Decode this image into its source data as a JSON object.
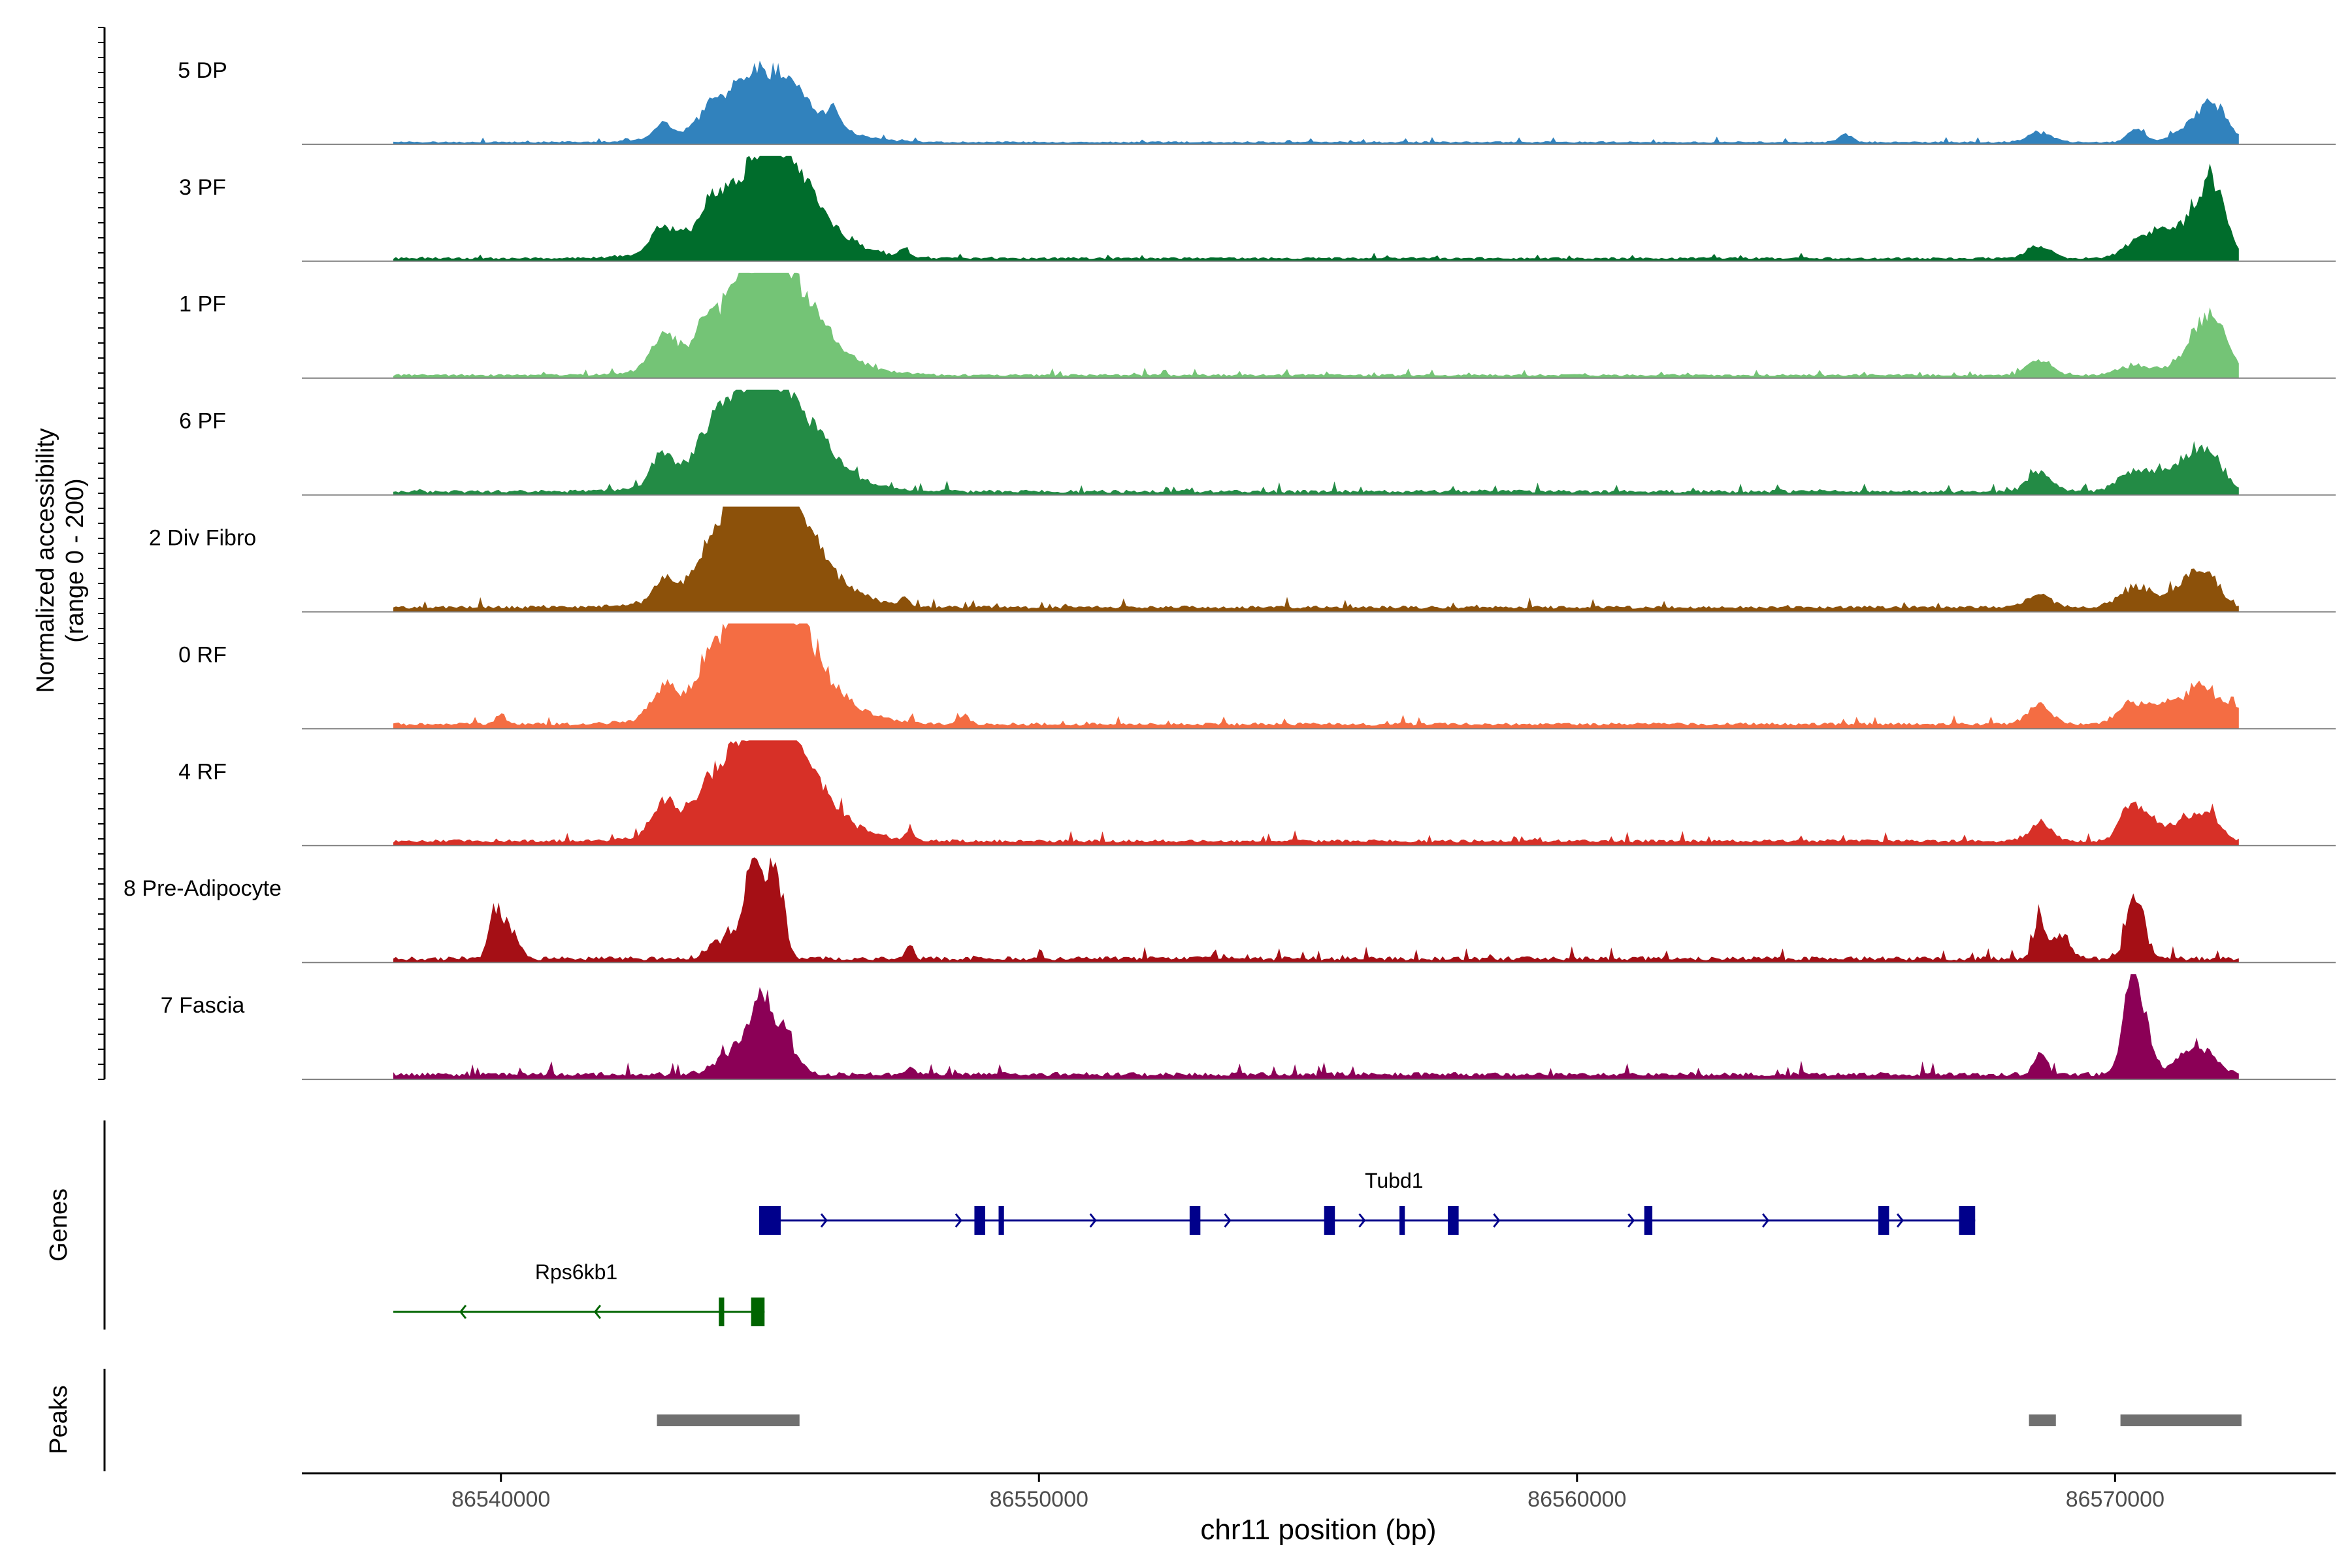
{
  "chart_data": {
    "type": "area",
    "title": "",
    "xlabel": "chr11 position (bp)",
    "ylabel": "Normalized accessibility",
    "ylabel_sub": "(range 0 - 200)",
    "y_range": [
      0,
      200
    ],
    "xlim": [
      86536300,
      86574100
    ],
    "x_ticks": [
      86540000,
      86550000,
      86560000,
      86570000
    ],
    "x_tick_labels": [
      "86540000",
      "86550000",
      "86560000",
      "86570000"
    ],
    "panel_labels": {
      "genes": "Genes",
      "peaks": "Peaks"
    },
    "tracks_xlim": [
      86538000,
      86572300
    ],
    "tracks": [
      {
        "name": "5 DP",
        "color": "#3182bd",
        "bg": 1.5,
        "noise": 1.5,
        "peaks": [
          [
            86543000,
            160,
            12
          ],
          [
            86543900,
            180,
            15
          ],
          [
            86544500,
            300,
            18
          ],
          [
            86544880,
            1000,
            30
          ],
          [
            86544950,
            650,
            14
          ],
          [
            86545200,
            500,
            22
          ],
          [
            86546200,
            100,
            15
          ],
          [
            86565000,
            120,
            8
          ],
          [
            86568600,
            220,
            10
          ],
          [
            86570400,
            160,
            12
          ],
          [
            86571650,
            350,
            28
          ],
          [
            86571900,
            200,
            14
          ]
        ]
      },
      {
        "name": "3 PF",
        "color": "#006d2c",
        "bg": 2,
        "noise": 2,
        "peaks": [
          [
            86543000,
            200,
            22
          ],
          [
            86543900,
            200,
            16
          ],
          [
            86544880,
            1000,
            60
          ],
          [
            86544950,
            650,
            25
          ],
          [
            86545200,
            500,
            26
          ],
          [
            86547500,
            80,
            8
          ],
          [
            86568600,
            220,
            12
          ],
          [
            86570500,
            300,
            20
          ],
          [
            86570900,
            200,
            14
          ],
          [
            86571600,
            350,
            50
          ],
          [
            86571850,
            200,
            35
          ]
        ]
      },
      {
        "name": "1 PF",
        "color": "#74c476",
        "bg": 2,
        "noise": 2,
        "peaks": [
          [
            86543000,
            220,
            28
          ],
          [
            86543800,
            150,
            16
          ],
          [
            86544400,
            220,
            20
          ],
          [
            86544880,
            1000,
            62
          ],
          [
            86544950,
            650,
            28
          ],
          [
            86545200,
            500,
            30
          ],
          [
            86568600,
            220,
            15
          ],
          [
            86570400,
            300,
            10
          ],
          [
            86571650,
            350,
            45
          ],
          [
            86571900,
            200,
            20
          ]
        ]
      },
      {
        "name": "6 PF",
        "color": "#238b45",
        "bg": 2,
        "noise": 3,
        "peaks": [
          [
            86543000,
            200,
            28
          ],
          [
            86543800,
            200,
            16
          ],
          [
            86544300,
            300,
            25
          ],
          [
            86544880,
            1000,
            58
          ],
          [
            86544950,
            650,
            28
          ],
          [
            86545200,
            500,
            25
          ],
          [
            86546000,
            200,
            8
          ],
          [
            86568600,
            220,
            18
          ],
          [
            86570300,
            250,
            18
          ],
          [
            86570800,
            250,
            15
          ],
          [
            86571500,
            300,
            40
          ],
          [
            86571900,
            200,
            15
          ]
        ]
      },
      {
        "name": "2 Div Fibro",
        "color": "#8c510a",
        "bg": 3,
        "noise": 3,
        "peaks": [
          [
            86543000,
            160,
            15
          ],
          [
            86543900,
            200,
            16
          ],
          [
            86544400,
            250,
            28
          ],
          [
            86544880,
            1000,
            65
          ],
          [
            86544950,
            650,
            30
          ],
          [
            86545200,
            500,
            28
          ],
          [
            86547500,
            80,
            8
          ],
          [
            86568600,
            220,
            12
          ],
          [
            86570400,
            300,
            20
          ],
          [
            86571400,
            300,
            28
          ],
          [
            86571800,
            200,
            18
          ]
        ]
      },
      {
        "name": "0 RF",
        "color": "#f46d43",
        "bg": 3,
        "noise": 3,
        "peaks": [
          [
            86540000,
            80,
            12
          ],
          [
            86543000,
            200,
            25
          ],
          [
            86543900,
            200,
            14
          ],
          [
            86544400,
            250,
            20
          ],
          [
            86544880,
            1000,
            72
          ],
          [
            86544950,
            650,
            35
          ],
          [
            86545200,
            500,
            30
          ],
          [
            86548600,
            100,
            8
          ],
          [
            86568600,
            220,
            18
          ],
          [
            86570300,
            250,
            20
          ],
          [
            86570900,
            250,
            18
          ],
          [
            86571600,
            300,
            38
          ],
          [
            86572200,
            120,
            18
          ]
        ]
      },
      {
        "name": "4 RF",
        "color": "#d73027",
        "bg": 3,
        "noise": 3,
        "peaks": [
          [
            86543000,
            200,
            28
          ],
          [
            86543800,
            200,
            14
          ],
          [
            86544400,
            250,
            15
          ],
          [
            86544880,
            1000,
            62
          ],
          [
            86544950,
            650,
            30
          ],
          [
            86545200,
            500,
            38
          ],
          [
            86547600,
            80,
            8
          ],
          [
            86568600,
            200,
            18
          ],
          [
            86570300,
            200,
            35
          ],
          [
            86570700,
            200,
            16
          ],
          [
            86571400,
            300,
            24
          ],
          [
            86571800,
            200,
            15
          ]
        ]
      },
      {
        "name": "8 Pre-Adipocyte",
        "color": "#a50f15",
        "bg": 2,
        "noise": 4,
        "peaks": [
          [
            86539900,
            120,
            45
          ],
          [
            86540200,
            150,
            25
          ],
          [
            86544300,
            300,
            25
          ],
          [
            86544700,
            150,
            88
          ],
          [
            86545100,
            150,
            90
          ],
          [
            86547600,
            80,
            12
          ],
          [
            86568600,
            100,
            40
          ],
          [
            86569000,
            150,
            25
          ],
          [
            86570300,
            120,
            45
          ],
          [
            86570500,
            150,
            25
          ]
        ]
      },
      {
        "name": "7 Fascia",
        "color": "#8b0056",
        "bg": 3,
        "noise": 4,
        "peaks": [
          [
            86544300,
            300,
            22
          ],
          [
            86544800,
            200,
            55
          ],
          [
            86545200,
            250,
            42
          ],
          [
            86547600,
            80,
            8
          ],
          [
            86568600,
            120,
            18
          ],
          [
            86570300,
            150,
            80
          ],
          [
            86570500,
            200,
            40
          ],
          [
            86571400,
            250,
            22
          ],
          [
            86571800,
            200,
            12
          ]
        ]
      }
    ],
    "genes": [
      {
        "name": "Tubd1",
        "strand": "+",
        "color": "#00008b",
        "start": 86544800,
        "end": 86567400,
        "label_pos": 86556600,
        "exons": [
          [
            86544800,
            86545200
          ],
          [
            86548800,
            86549000
          ],
          [
            86549250,
            86549350
          ],
          [
            86552800,
            86553000
          ],
          [
            86555300,
            86555500
          ],
          [
            86556700,
            86556800
          ],
          [
            86557600,
            86557800
          ],
          [
            86561250,
            86561400
          ],
          [
            86565600,
            86565800
          ],
          [
            86567100,
            86567400
          ]
        ]
      },
      {
        "name": "Rps6kb1",
        "strand": "-",
        "color": "#006400",
        "start": 86538000,
        "end": 86544900,
        "label_pos": 86541400,
        "exons": [
          [
            86544050,
            86544150
          ],
          [
            86544650,
            86544900
          ]
        ]
      }
    ],
    "peak_regions": [
      [
        86542900,
        86545550
      ],
      [
        86568400,
        86568900
      ],
      [
        86570100,
        86572350
      ]
    ]
  }
}
